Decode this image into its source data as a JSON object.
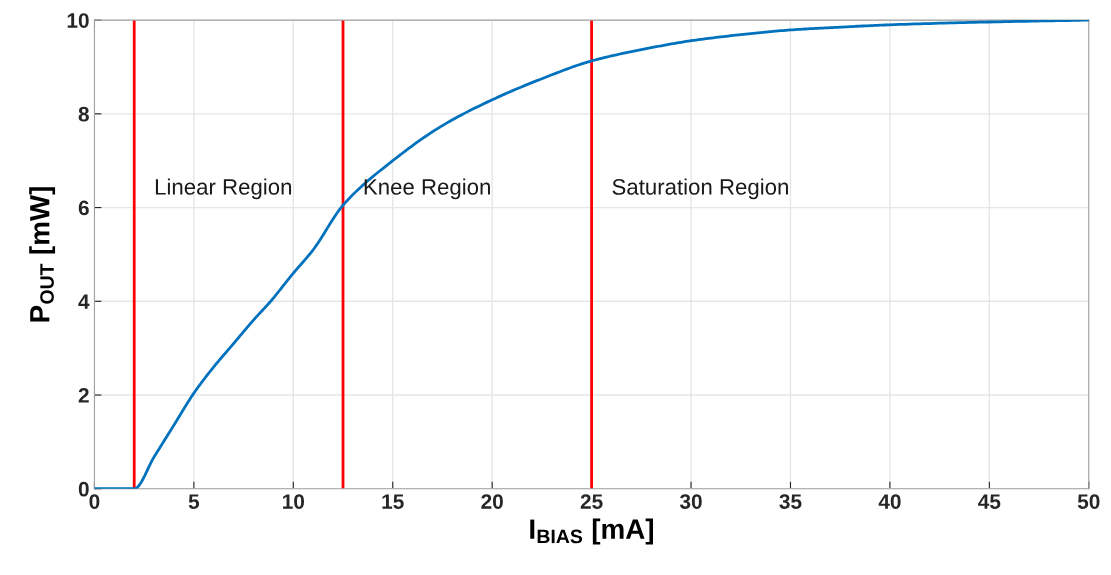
{
  "chart_data": {
    "type": "line",
    "xlabel": "I$_{BIAS}$ [mA]",
    "ylabel": "P$_{OUT}$ [mW]",
    "xlim": [
      0,
      50
    ],
    "xticks": [
      0,
      5,
      10,
      15,
      20,
      25,
      30,
      35,
      40,
      45,
      50
    ],
    "ylim": [
      0,
      10
    ],
    "yticks": [
      0,
      2,
      4,
      6,
      8,
      10
    ],
    "grid": true,
    "marker": "none",
    "line_style": "solid",
    "series": [
      {
        "color": "#0072bd",
        "x": [
          0,
          2,
          3,
          4,
          5,
          6,
          7,
          8,
          8.86,
          10,
          11,
          12.5,
          15,
          17.5,
          20,
          22.5,
          25,
          27.5,
          30,
          32.5,
          35,
          37.5,
          40,
          45,
          50
        ],
        "values": [
          0,
          0,
          0.68,
          1.36,
          2.04,
          2.6,
          3.1,
          3.6,
          4.0,
          4.6,
          5.1,
          6.05,
          7.0,
          7.75,
          8.3,
          8.75,
          9.13,
          9.37,
          9.56,
          9.69,
          9.79,
          9.85,
          9.9,
          9.96,
          10.0
        ]
      }
    ],
    "ref_lines": [
      {
        "axis": "x",
        "value": 2,
        "label": "Linear Region",
        "color": "#ff0000"
      },
      {
        "axis": "x",
        "value": 12.5,
        "label": "Knee Region",
        "color": "#ff0000"
      },
      {
        "axis": "x",
        "value": 25,
        "label": "Saturation Region",
        "color": "#ff0000"
      }
    ]
  }
}
